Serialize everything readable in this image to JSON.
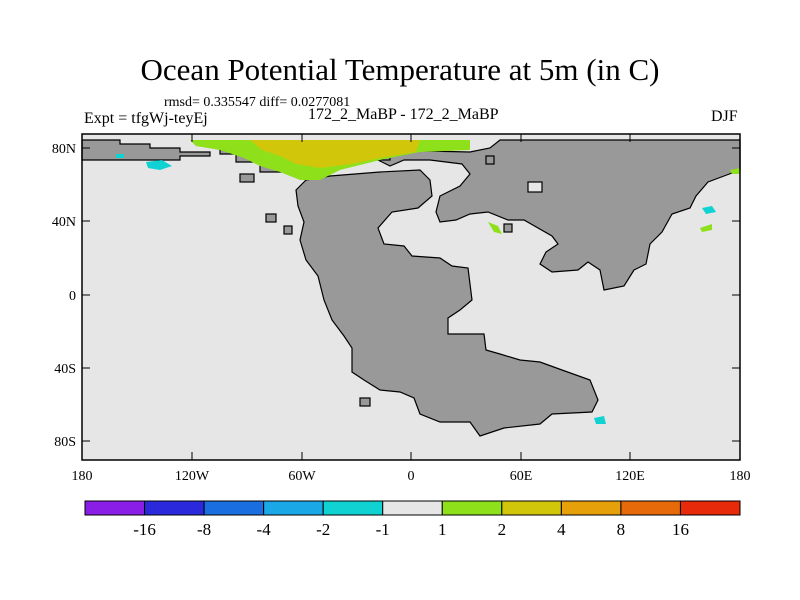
{
  "header": {
    "title": "Ocean Potential Temperature at 5m (in C)",
    "stats": "rmsd= 0.335547 diff= 0.0277081",
    "experiment": "Expt = tfgWj-teyEj",
    "runs": "172_2_MaBP - 172_2_MaBP",
    "season": "DJF"
  },
  "axes": {
    "lat_labels": [
      "80N",
      "40N",
      "0",
      "40S",
      "80S"
    ],
    "lon_labels": [
      "180",
      "120W",
      "60W",
      "0",
      "60E",
      "120E",
      "180"
    ]
  },
  "colorbar": {
    "labels": [
      "-16",
      "-8",
      "-4",
      "-2",
      "-1",
      "1",
      "2",
      "4",
      "8",
      "16"
    ],
    "colors": [
      "#8a1ee6",
      "#2a2adc",
      "#1a6ee0",
      "#1aa8e6",
      "#10d2d2",
      "#e6e6e6",
      "#8ee01a",
      "#d2c60a",
      "#e6a00a",
      "#e66a0a",
      "#e62a0a"
    ]
  },
  "colors": {
    "ocean": "#e6e6e6",
    "land": "#999999"
  }
}
